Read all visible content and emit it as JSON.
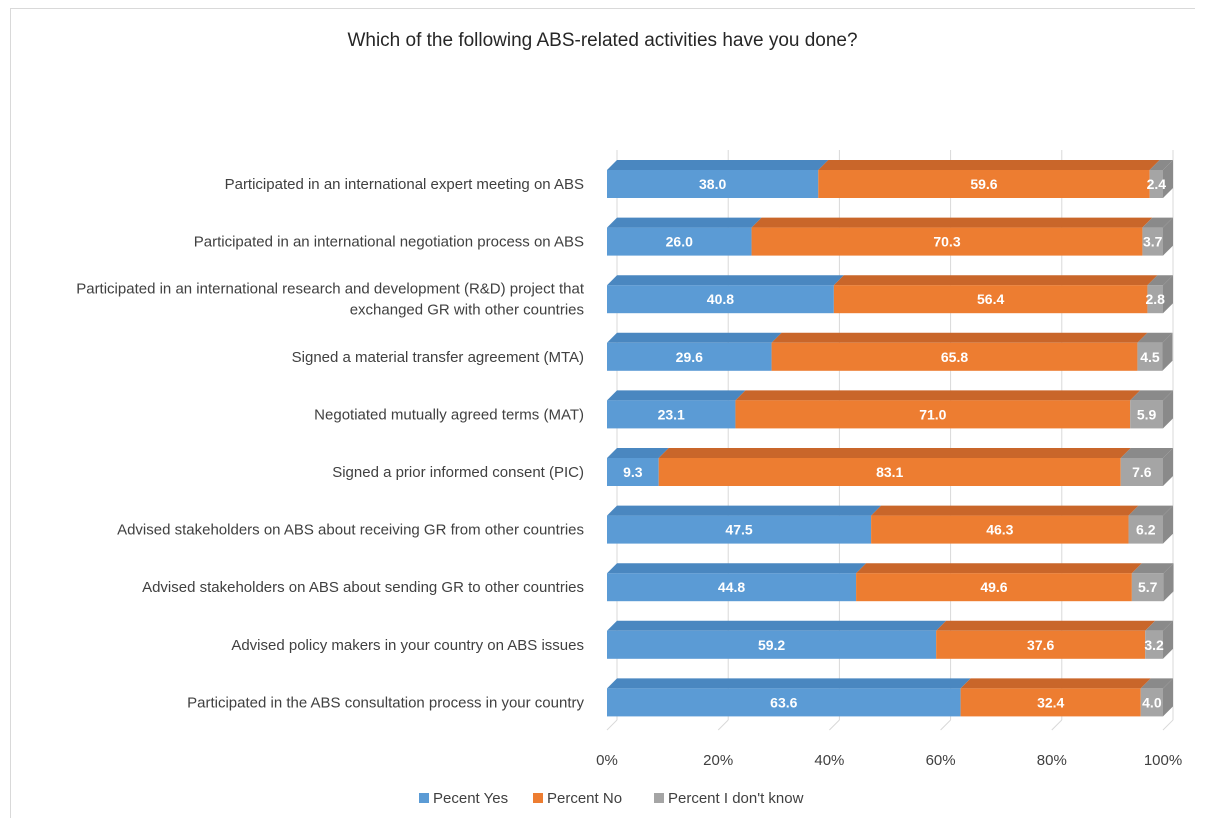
{
  "chart_data": {
    "type": "bar",
    "orientation": "horizontal",
    "stacked": "percent",
    "style": "3d",
    "title": "Which of the following ABS-related activities have you done?",
    "categories": [
      [
        "Participated in an international expert meeting on ABS"
      ],
      [
        "Participated in an international negotiation process on ABS"
      ],
      [
        "Participated in an international research and development (R&D) project that",
        "exchanged GR with other countries"
      ],
      [
        "Signed a material transfer agreement (MTA)"
      ],
      [
        "Negotiated mutually agreed terms (MAT)"
      ],
      [
        "Signed a prior informed consent (PIC)"
      ],
      [
        "Advised stakeholders on ABS about receiving GR from other countries"
      ],
      [
        "Advised stakeholders on ABS about sending GR to other countries"
      ],
      [
        "Advised policy makers in your country on ABS issues"
      ],
      [
        "Participated in the ABS consultation process in your country"
      ]
    ],
    "series": [
      {
        "name": "Pecent Yes",
        "color": "#5b9bd5",
        "side_color": "#4a87c0",
        "values": [
          38.0,
          26.0,
          40.8,
          29.6,
          23.1,
          9.3,
          47.5,
          44.8,
          59.2,
          63.6
        ]
      },
      {
        "name": "Percent No",
        "color": "#ed7d31",
        "side_color": "#c9662a",
        "values": [
          59.6,
          70.3,
          56.4,
          65.8,
          71.0,
          83.1,
          46.3,
          49.6,
          37.6,
          32.4
        ]
      },
      {
        "name": "Percent I don't know",
        "color": "#a5a5a5",
        "side_color": "#8a8a8a",
        "values": [
          2.4,
          3.7,
          2.8,
          4.5,
          5.9,
          7.6,
          6.2,
          5.7,
          3.2,
          4.0
        ]
      }
    ],
    "data_labels": [
      [
        "38.0",
        "26.0",
        "40.8",
        "29.6",
        "23.1",
        "9.3",
        "47.5",
        "44.8",
        "59.2",
        "63.6"
      ],
      [
        "59.6",
        "70.3",
        "56.4",
        "65.8",
        "71.0",
        "83.1",
        "46.3",
        "49.6",
        "37.6",
        "32.4"
      ],
      [
        "2.4",
        "3.7",
        "2.8",
        "4.5",
        "5.9",
        "7.6",
        "6.2",
        "5.7",
        "3.2",
        "4.0"
      ]
    ],
    "xticks": [
      "0%",
      "20%",
      "40%",
      "60%",
      "80%",
      "100%"
    ],
    "xlim": [
      0,
      100
    ],
    "grid": true,
    "legend_position": "bottom"
  }
}
